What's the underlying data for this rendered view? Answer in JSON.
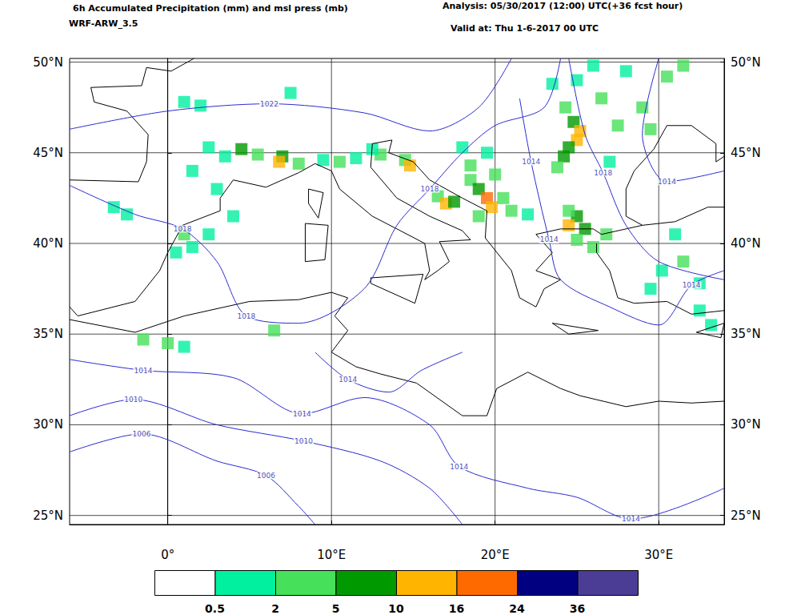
{
  "chart_data": {
    "type": "map",
    "title": "6h Accumulated Precipitation (mm) and msl press (mb)",
    "subtitle": "WRF-ARW_3.5",
    "annotations": [
      "Analysis: 05/30/2017 (12:00) UTC(+36 fcst hour)",
      "Valid at: Thu 1-6-2017 00 UTC"
    ],
    "xlim": [
      -6,
      34
    ],
    "ylim": [
      24.5,
      50.2
    ],
    "xticks": [
      {
        "value": 0,
        "label": "0°"
      },
      {
        "value": 10,
        "label": "10°E"
      },
      {
        "value": 20,
        "label": "20°E"
      },
      {
        "value": 30,
        "label": "30°E"
      }
    ],
    "yticks": [
      {
        "value": 25,
        "label": "25°N"
      },
      {
        "value": 30,
        "label": "30°N"
      },
      {
        "value": 35,
        "label": "35°N"
      },
      {
        "value": 40,
        "label": "40°N"
      },
      {
        "value": 45,
        "label": "45°N"
      },
      {
        "value": 50,
        "label": "50°N"
      }
    ],
    "grid": true,
    "colorbar": {
      "ticks": [
        0.5,
        2,
        5,
        10,
        16,
        24,
        36
      ],
      "colors": [
        "#ffffff",
        "#00f0a0",
        "#46e05a",
        "#009a00",
        "#ffb400",
        "#ff6a00",
        "#000080",
        "#4b3c96"
      ]
    },
    "isobars": [
      {
        "value": 1022,
        "points": [
          [
            -6,
            46.3
          ],
          [
            0,
            47.3
          ],
          [
            6.2,
            47.7
          ],
          [
            12,
            47.2
          ],
          [
            16,
            46.2
          ],
          [
            19,
            47.5
          ],
          [
            21,
            50.2
          ]
        ],
        "labels_at": [
          [
            6.2,
            47.7
          ]
        ]
      },
      {
        "value": 1018,
        "points": [
          [
            -6,
            43.2
          ],
          [
            -2,
            41.6
          ],
          [
            0.9,
            40.8
          ],
          [
            3,
            39
          ],
          [
            4.8,
            36
          ],
          [
            8,
            35.6
          ],
          [
            12,
            37.5
          ],
          [
            14,
            41
          ],
          [
            16,
            43
          ],
          [
            18,
            45
          ],
          [
            20,
            46.5
          ],
          [
            23,
            47.5
          ],
          [
            24,
            50.2
          ]
        ],
        "labels_at": [
          [
            0.9,
            40.8
          ],
          [
            4.8,
            36.0
          ],
          [
            16.0,
            43.0
          ]
        ]
      },
      {
        "value": 1018,
        "points": [
          [
            24.5,
            50.2
          ],
          [
            25.5,
            46
          ],
          [
            26.6,
            43.9
          ],
          [
            28,
            41
          ],
          [
            30,
            39
          ],
          [
            34,
            38
          ]
        ],
        "labels_at": [
          [
            26.6,
            43.9
          ]
        ]
      },
      {
        "value": 1014,
        "points": [
          [
            -6,
            33.6
          ],
          [
            -1.5,
            33
          ],
          [
            4,
            32.6
          ],
          [
            8.2,
            30.6
          ],
          [
            12,
            31.5
          ],
          [
            16,
            30
          ],
          [
            17.8,
            27.7
          ],
          [
            22,
            26.5
          ],
          [
            25,
            26
          ],
          [
            28.3,
            24.8
          ],
          [
            34,
            26.5
          ]
        ],
        "labels_at": [
          [
            -1.5,
            33.0
          ],
          [
            8.2,
            30.6
          ],
          [
            17.8,
            27.7
          ],
          [
            28.3,
            24.8
          ]
        ]
      },
      {
        "value": 1014,
        "points": [
          [
            21.5,
            48
          ],
          [
            22.2,
            44.5
          ],
          [
            23.3,
            40.2
          ],
          [
            24,
            38
          ],
          [
            27,
            36.5
          ],
          [
            30,
            35.5
          ],
          [
            32,
            37.7
          ],
          [
            34,
            38.5
          ]
        ],
        "labels_at": [
          [
            22.2,
            44.5
          ],
          [
            23.3,
            40.2
          ],
          [
            32.0,
            37.7
          ]
        ]
      },
      {
        "value": 1014,
        "points": [
          [
            34,
            44
          ],
          [
            30.5,
            43.4
          ],
          [
            29,
            46
          ],
          [
            30,
            50.2
          ]
        ],
        "labels_at": [
          [
            30.5,
            43.4
          ]
        ]
      },
      {
        "value": 1014,
        "points": [
          [
            9,
            34
          ],
          [
            11,
            32.5
          ],
          [
            13.5,
            31.8
          ],
          [
            15.5,
            33
          ],
          [
            18,
            34
          ]
        ],
        "labels_at": [
          [
            11.0,
            32.5
          ]
        ]
      },
      {
        "value": 1010,
        "points": [
          [
            -6,
            30.5
          ],
          [
            -2.1,
            31.4
          ],
          [
            3,
            30
          ],
          [
            8.3,
            29.1
          ],
          [
            13,
            28
          ],
          [
            16,
            26.5
          ],
          [
            18,
            24.5
          ]
        ],
        "labels_at": [
          [
            -2.1,
            31.4
          ],
          [
            8.3,
            29.1
          ]
        ]
      },
      {
        "value": 1006,
        "points": [
          [
            -6,
            28.5
          ],
          [
            -1.6,
            29.5
          ],
          [
            3,
            28
          ],
          [
            6,
            27.2
          ],
          [
            8,
            25.5
          ],
          [
            9,
            24.5
          ]
        ],
        "labels_at": [
          [
            -1.6,
            29.5
          ],
          [
            6.0,
            27.2
          ]
        ]
      }
    ],
    "precipitation": [
      {
        "lon": 4.5,
        "lat": 45.2,
        "value": 5
      },
      {
        "lon": 5.5,
        "lat": 44.9,
        "value": 3
      },
      {
        "lon": 7,
        "lat": 44.8,
        "value": 8
      },
      {
        "lon": 6.8,
        "lat": 44.5,
        "value": 12
      },
      {
        "lon": 8,
        "lat": 44.4,
        "value": 3
      },
      {
        "lon": 9.5,
        "lat": 44.6,
        "value": 1
      },
      {
        "lon": 10.5,
        "lat": 44.5,
        "value": 2
      },
      {
        "lon": 11.5,
        "lat": 44.7,
        "value": 1
      },
      {
        "lon": 13,
        "lat": 44.9,
        "value": 2
      },
      {
        "lon": 14.5,
        "lat": 44.6,
        "value": 3
      },
      {
        "lon": 14.8,
        "lat": 44.3,
        "value": 12
      },
      {
        "lon": 3.5,
        "lat": 44.8,
        "value": 1
      },
      {
        "lon": 2.5,
        "lat": 45.3,
        "value": 1
      },
      {
        "lon": 1.5,
        "lat": 44,
        "value": 1
      },
      {
        "lon": 3,
        "lat": 43,
        "value": 1
      },
      {
        "lon": 12.5,
        "lat": 45.2,
        "value": 1
      },
      {
        "lon": -3.3,
        "lat": 42.0,
        "value": 1
      },
      {
        "lon": -2.5,
        "lat": 41.6,
        "value": 1
      },
      {
        "lon": 1,
        "lat": 40.5,
        "value": 2
      },
      {
        "lon": 1.5,
        "lat": 39.8,
        "value": 1
      },
      {
        "lon": 2.5,
        "lat": 40.5,
        "value": 1
      },
      {
        "lon": 4,
        "lat": 41.5,
        "value": 1
      },
      {
        "lon": 0.5,
        "lat": 39.5,
        "value": 1
      },
      {
        "lon": 1,
        "lat": 47.8,
        "value": 1
      },
      {
        "lon": 2,
        "lat": 47.6,
        "value": 1
      },
      {
        "lon": 7.5,
        "lat": 48.3,
        "value": 1
      },
      {
        "lon": -1.5,
        "lat": 34.7,
        "value": 2
      },
      {
        "lon": 0,
        "lat": 34.5,
        "value": 3
      },
      {
        "lon": 1,
        "lat": 34.3,
        "value": 1
      },
      {
        "lon": 6.5,
        "lat": 35.2,
        "value": 2
      },
      {
        "lon": 16.5,
        "lat": 42.6,
        "value": 3
      },
      {
        "lon": 17,
        "lat": 42.2,
        "value": 14
      },
      {
        "lon": 17.5,
        "lat": 42.3,
        "value": 8
      },
      {
        "lon": 18.5,
        "lat": 43.5,
        "value": 4
      },
      {
        "lon": 19,
        "lat": 43,
        "value": 8
      },
      {
        "lon": 19.5,
        "lat": 42.5,
        "value": 18
      },
      {
        "lon": 19.8,
        "lat": 42,
        "value": 12
      },
      {
        "lon": 20,
        "lat": 43.8,
        "value": 3
      },
      {
        "lon": 18.5,
        "lat": 44.3,
        "value": 2
      },
      {
        "lon": 18,
        "lat": 45.3,
        "value": 1
      },
      {
        "lon": 19.5,
        "lat": 45,
        "value": 1
      },
      {
        "lon": 20.5,
        "lat": 42.5,
        "value": 3
      },
      {
        "lon": 21,
        "lat": 41.8,
        "value": 2
      },
      {
        "lon": 22,
        "lat": 41.6,
        "value": 1
      },
      {
        "lon": 19,
        "lat": 41.5,
        "value": 2
      },
      {
        "lon": 24.3,
        "lat": 47.5,
        "value": 3
      },
      {
        "lon": 24.8,
        "lat": 46.7,
        "value": 6
      },
      {
        "lon": 25.2,
        "lat": 46.2,
        "value": 10
      },
      {
        "lon": 25,
        "lat": 45.7,
        "value": 14
      },
      {
        "lon": 24.5,
        "lat": 45.3,
        "value": 8
      },
      {
        "lon": 24.2,
        "lat": 44.8,
        "value": 5
      },
      {
        "lon": 23.8,
        "lat": 44.2,
        "value": 2
      },
      {
        "lon": 23.5,
        "lat": 48.8,
        "value": 1
      },
      {
        "lon": 25,
        "lat": 49,
        "value": 1
      },
      {
        "lon": 26.5,
        "lat": 48,
        "value": 4
      },
      {
        "lon": 27.5,
        "lat": 46.5,
        "value": 3
      },
      {
        "lon": 27,
        "lat": 44.5,
        "value": 1
      },
      {
        "lon": 29,
        "lat": 47.5,
        "value": 2
      },
      {
        "lon": 29.5,
        "lat": 46.3,
        "value": 2
      },
      {
        "lon": 28,
        "lat": 49.5,
        "value": 1
      },
      {
        "lon": 30.5,
        "lat": 49.2,
        "value": 2
      },
      {
        "lon": 31.5,
        "lat": 49.8,
        "value": 2
      },
      {
        "lon": 26,
        "lat": 49.8,
        "value": 1
      },
      {
        "lon": 25,
        "lat": 41.5,
        "value": 6
      },
      {
        "lon": 24.5,
        "lat": 41.0,
        "value": 12
      },
      {
        "lon": 25.5,
        "lat": 40.8,
        "value": 8
      },
      {
        "lon": 25,
        "lat": 40.2,
        "value": 4
      },
      {
        "lon": 26,
        "lat": 39.8,
        "value": 2
      },
      {
        "lon": 26.8,
        "lat": 40.5,
        "value": 2
      },
      {
        "lon": 24.5,
        "lat": 41.8,
        "value": 2
      },
      {
        "lon": 30.2,
        "lat": 38.5,
        "value": 1
      },
      {
        "lon": 31.5,
        "lat": 39,
        "value": 2
      },
      {
        "lon": 32.5,
        "lat": 37.8,
        "value": 1
      },
      {
        "lon": 32.5,
        "lat": 36.3,
        "value": 1
      },
      {
        "lon": 33.2,
        "lat": 35.5,
        "value": 1
      },
      {
        "lon": 29.5,
        "lat": 37.5,
        "value": 1
      },
      {
        "lon": 31,
        "lat": 40.5,
        "value": 1
      }
    ],
    "coastlines": [
      [
        [
          -6,
          43.5
        ],
        [
          -1.8,
          43.4
        ],
        [
          -1.3,
          44.5
        ],
        [
          -1.2,
          46
        ],
        [
          -2.5,
          47.3
        ],
        [
          -4.5,
          47.8
        ],
        [
          -4.7,
          48.6
        ],
        [
          -1.6,
          48.7
        ],
        [
          -1.3,
          49.7
        ],
        [
          0.2,
          49.5
        ],
        [
          1.6,
          50.2
        ]
      ],
      [
        [
          -6,
          36.5
        ],
        [
          -5.5,
          36
        ],
        [
          -2,
          36.8
        ],
        [
          -0.5,
          38.5
        ],
        [
          0,
          39.5
        ],
        [
          0.9,
          41
        ],
        [
          3.2,
          41.8
        ],
        [
          3.2,
          42.5
        ],
        [
          4,
          43.5
        ],
        [
          6,
          43.1
        ],
        [
          8,
          43.9
        ],
        [
          9,
          44.4
        ],
        [
          10,
          44
        ],
        [
          10.5,
          43
        ],
        [
          12.5,
          41.5
        ],
        [
          14,
          40.8
        ],
        [
          15.7,
          40
        ],
        [
          16,
          38.5
        ],
        [
          15.7,
          38
        ],
        [
          16.5,
          38.5
        ],
        [
          17.2,
          39
        ],
        [
          16.6,
          40.1
        ],
        [
          18.5,
          40.2
        ],
        [
          18,
          40.7
        ],
        [
          16,
          41.5
        ],
        [
          14,
          42.5
        ],
        [
          12.4,
          44.2
        ],
        [
          12.5,
          45.5
        ],
        [
          13.7,
          45.7
        ],
        [
          13.5,
          45
        ],
        [
          15,
          44.5
        ],
        [
          16,
          43.5
        ],
        [
          18,
          42.5
        ],
        [
          19.5,
          41.8
        ],
        [
          19.4,
          40.3
        ],
        [
          21,
          38.5
        ],
        [
          21.5,
          37
        ],
        [
          22.5,
          36.5
        ],
        [
          23,
          37.5
        ],
        [
          24,
          38
        ],
        [
          22.5,
          38.5
        ],
        [
          23.5,
          39.5
        ],
        [
          22.5,
          40.5
        ],
        [
          24,
          40.8
        ],
        [
          26,
          40.8
        ],
        [
          26.5,
          40.5
        ],
        [
          29,
          41
        ],
        [
          28,
          41.5
        ],
        [
          28,
          43
        ],
        [
          28.5,
          44
        ],
        [
          29.7,
          45.2
        ],
        [
          30.5,
          46.5
        ],
        [
          32,
          46.5
        ],
        [
          33.5,
          45.5
        ],
        [
          33.5,
          44.5
        ],
        [
          34,
          44.8
        ]
      ],
      [
        [
          26.2,
          40
        ],
        [
          26.2,
          39.5
        ],
        [
          27,
          38.5
        ],
        [
          27.5,
          37
        ],
        [
          28.5,
          36.7
        ],
        [
          30.5,
          36.8
        ],
        [
          32,
          36.1
        ],
        [
          34,
          36.3
        ]
      ],
      [
        [
          29,
          41
        ],
        [
          31,
          41.2
        ],
        [
          33,
          42
        ],
        [
          34,
          42
        ]
      ],
      [
        [
          -6,
          35.8
        ],
        [
          -2,
          35.1
        ],
        [
          1,
          36
        ],
        [
          5,
          36.8
        ],
        [
          8,
          36.9
        ],
        [
          10,
          37.3
        ],
        [
          11,
          37
        ],
        [
          10.2,
          36
        ],
        [
          11,
          35.2
        ],
        [
          10,
          34
        ],
        [
          11.5,
          33.2
        ],
        [
          13,
          32.8
        ],
        [
          15.2,
          32.3
        ],
        [
          18,
          30.5
        ],
        [
          19.5,
          30.5
        ],
        [
          20.1,
          32
        ],
        [
          22,
          32.9
        ],
        [
          24,
          32
        ],
        [
          25.2,
          31.6
        ],
        [
          28,
          31
        ],
        [
          30,
          31.3
        ],
        [
          32,
          31.2
        ],
        [
          34,
          31.3
        ]
      ],
      [
        [
          12.4,
          38.1
        ],
        [
          15.6,
          38.3
        ],
        [
          15.1,
          36.7
        ],
        [
          12.4,
          37.8
        ],
        [
          12.4,
          38.1
        ]
      ],
      [
        [
          8.4,
          41.1
        ],
        [
          9.8,
          41
        ],
        [
          9.6,
          39.1
        ],
        [
          8.4,
          39
        ],
        [
          8.4,
          41.1
        ]
      ],
      [
        [
          8.6,
          43
        ],
        [
          9.5,
          42.8
        ],
        [
          9.2,
          41.4
        ],
        [
          8.6,
          42.2
        ],
        [
          8.6,
          43
        ]
      ],
      [
        [
          23.5,
          35.6
        ],
        [
          26.3,
          35.2
        ],
        [
          24.5,
          35
        ],
        [
          23.5,
          35.6
        ]
      ],
      [
        [
          32.3,
          35.1
        ],
        [
          34,
          35.6
        ],
        [
          33.8,
          34.8
        ],
        [
          32.3,
          35.1
        ]
      ]
    ]
  }
}
